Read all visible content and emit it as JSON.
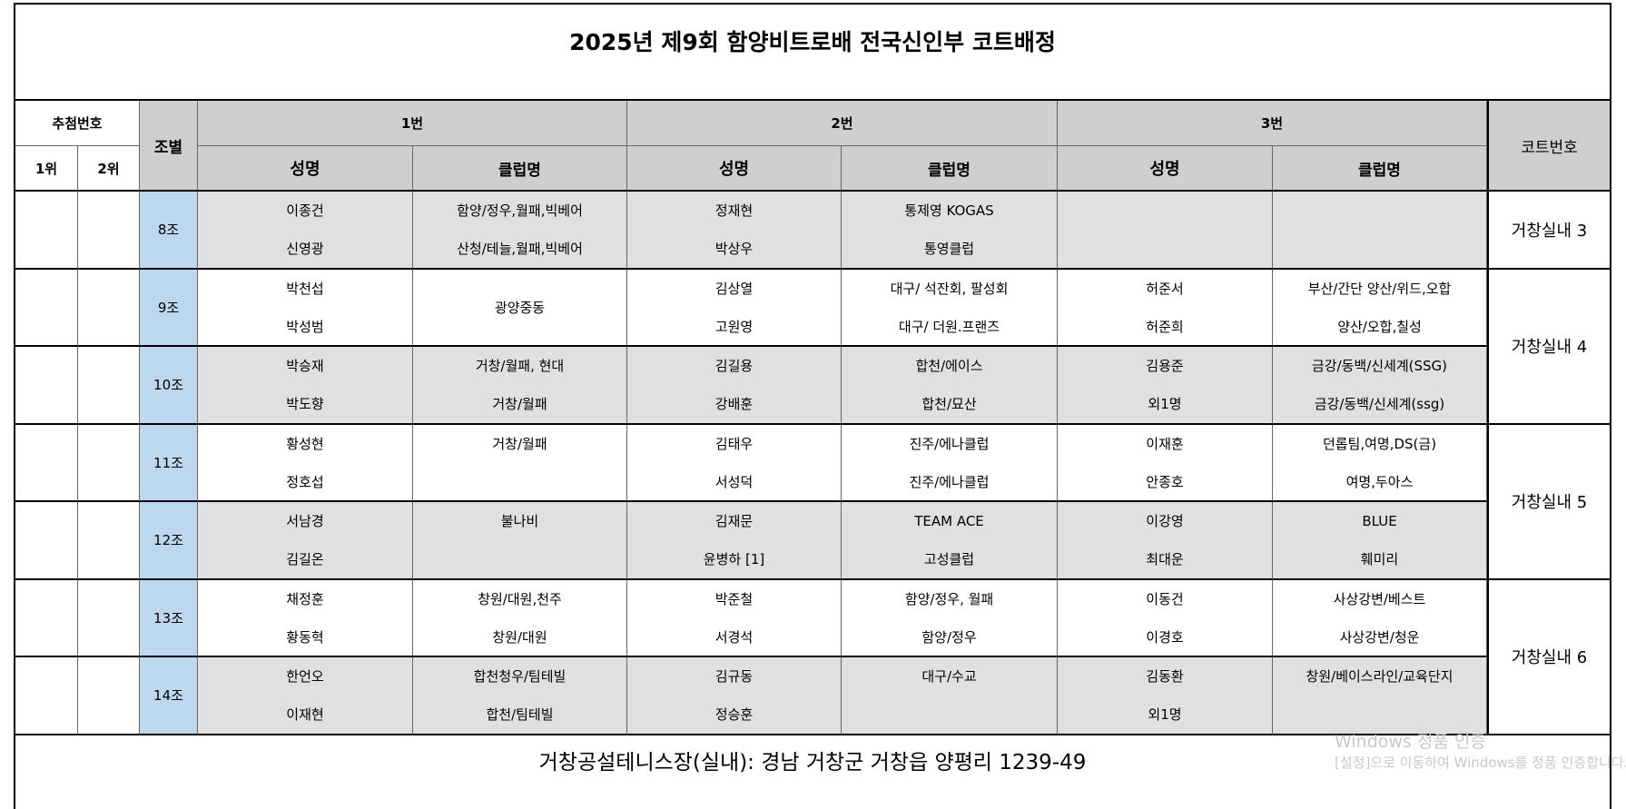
{
  "title": "2025년 제9회 함양비트로배 전국신인부 코트배정",
  "header": {
    "draw": "추첨번호",
    "ranks": [
      "1위",
      "2위"
    ],
    "group": "조별",
    "slots": [
      "1번",
      "2번",
      "3번"
    ],
    "name": "성명",
    "club": "클럽명",
    "court": "코트번호"
  },
  "courts": [
    {
      "label": "거창실내 3",
      "groups": [
        {
          "label": "8조",
          "teams": [
            {
              "names": [
                "이종건",
                "신영광"
              ],
              "clubs": [
                "함양/정우,월패,빅베어",
                "산청/테늘,월패,빅베어"
              ]
            },
            {
              "names": [
                "정재현",
                "박상우"
              ],
              "clubs": [
                "통제영 KOGAS",
                "통영클럽"
              ]
            }
          ]
        }
      ]
    },
    {
      "label": "거창실내 4",
      "groups": [
        {
          "label": "9조",
          "teams": [
            {
              "names": [
                "박천섭",
                "박성범"
              ],
              "clubs": [
                "광양중동"
              ]
            },
            {
              "names": [
                "김상열",
                "고원영"
              ],
              "clubs": [
                "대구/ 석잔회, 팔성회",
                "대구/ 더원.프랜즈"
              ]
            },
            {
              "names": [
                "허준서",
                "허준희"
              ],
              "clubs": [
                "부산/간단 양산/위드,오합",
                "양산/오합,칠성"
              ]
            }
          ]
        },
        {
          "label": "10조",
          "teams": [
            {
              "names": [
                "박승재",
                "박도향"
              ],
              "clubs": [
                "거창/월패, 현대",
                "거창/월패"
              ]
            },
            {
              "names": [
                "김길용",
                "강배훈"
              ],
              "clubs": [
                "합천/에이스",
                "합천/묘산"
              ]
            },
            {
              "names": [
                "김용준",
                "외1명"
              ],
              "clubs": [
                "금강/동백/신세계(SSG)",
                "금강/동백/신세계(ssg)"
              ]
            }
          ]
        }
      ]
    },
    {
      "label": "거창실내 5",
      "groups": [
        {
          "label": "11조",
          "teams": [
            {
              "names": [
                "황성현",
                "정호섭"
              ],
              "clubs": [
                "거창/월패",
                null
              ]
            },
            {
              "names": [
                "김태우",
                "서성덕"
              ],
              "clubs": [
                "진주/에나클럽",
                "진주/에나클럽"
              ]
            },
            {
              "names": [
                "이재훈",
                "안종호"
              ],
              "clubs": [
                "던롭팀,여명,DS(금)",
                "여명,두아스"
              ]
            }
          ]
        },
        {
          "label": "12조",
          "teams": [
            {
              "names": [
                "서남경",
                "김길온"
              ],
              "clubs": [
                "불나비",
                null
              ]
            },
            {
              "names": [
                "김재문",
                "윤병하 [1]"
              ],
              "clubs": [
                "TEAM ACE",
                "고성클럽"
              ]
            },
            {
              "names": [
                "이강영",
                "최대운"
              ],
              "clubs": [
                "BLUE",
                "훼미리"
              ]
            }
          ]
        }
      ]
    },
    {
      "label": "거창실내 6",
      "groups": [
        {
          "label": "13조",
          "teams": [
            {
              "names": [
                "채정훈",
                "황동혁"
              ],
              "clubs": [
                "창원/대원,천주",
                "창원/대원"
              ]
            },
            {
              "names": [
                "박준철",
                "서경석"
              ],
              "clubs": [
                "함양/정우, 월패",
                "함양/정우"
              ]
            },
            {
              "names": [
                "이동건",
                "이경호"
              ],
              "clubs": [
                "사상강변/베스트",
                "사상강변/청운"
              ]
            }
          ]
        },
        {
          "label": "14조",
          "teams": [
            {
              "names": [
                "한언오",
                "이재현"
              ],
              "clubs": [
                "합천청우/팀테빌",
                "합천/팀테빌"
              ]
            },
            {
              "names": [
                "김규동",
                "정승훈"
              ],
              "clubs": [
                "대구/수교",
                null
              ]
            },
            {
              "names": [
                "김동환",
                "외1명"
              ],
              "clubs": [
                "창원/베이스라인/교육단지",
                null
              ]
            }
          ]
        }
      ]
    }
  ],
  "footer": "거창공설테니스장(실내): 경남 거창군 거창읍 양평리 1239-49",
  "watermark": {
    "title": "Windows 정품 인증",
    "text": "[설정]으로 이동하여 Windows를 정품 인증합니다."
  }
}
